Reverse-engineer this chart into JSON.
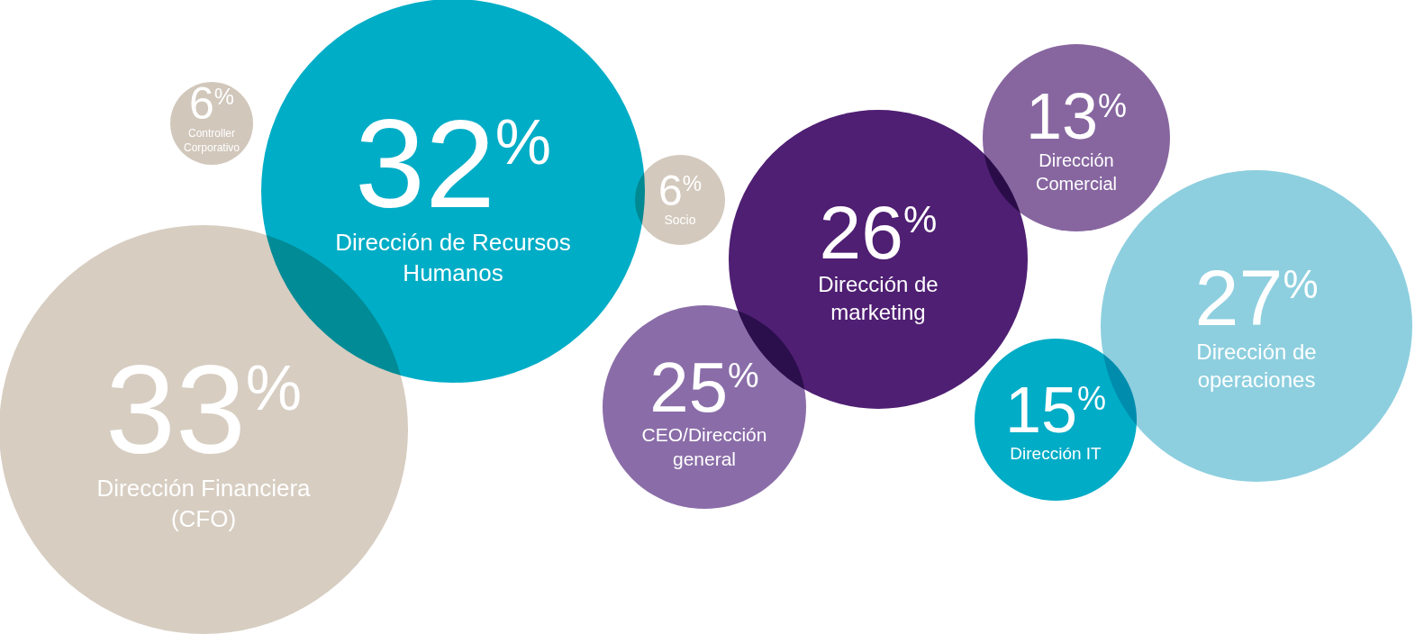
{
  "chart_data": {
    "type": "other",
    "categories": [
      "Controller Corporativo",
      "Dirección de Recursos Humanos",
      "Dirección Financiera (CFO)",
      "Socio",
      "Dirección de marketing",
      "CEO/Dirección general",
      "Dirección Comercial",
      "Dirección de operaciones",
      "Dirección IT"
    ],
    "values": [
      6,
      32,
      33,
      6,
      26,
      25,
      13,
      27,
      15
    ],
    "value_labels": [
      "6$^{%}$",
      "32$^{%}$",
      "33$^{%}$",
      "6$^{%}$",
      "26$^{%}$",
      "25$^{%}$",
      "13$^{%}$",
      "27$^{%}$",
      "15$^{%}$"
    ],
    "colors": [
      "#d1c7bb",
      "#00adc6",
      "#d7cdc1",
      "#d3c9bd",
      "#4f1f73",
      "#8a6da8",
      "#8766a0",
      "#8dcfdf",
      "#00acc6"
    ]
  }
}
